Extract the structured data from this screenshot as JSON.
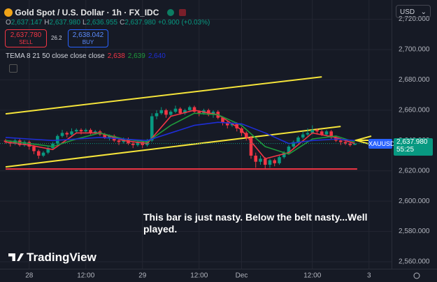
{
  "chart_data": {
    "type": "candlestick",
    "title": "Gold Spot / U.S. Dollar · 1h · FX_IDC",
    "ohlc_legend": [
      {
        "key": "O",
        "value": "2,637.147"
      },
      {
        "key": "H",
        "value": "2,637.980"
      },
      {
        "key": "L",
        "value": "2,636.955"
      },
      {
        "key": "C",
        "value": "2,637.980"
      }
    ],
    "change": "+0.900 (+0.03%)",
    "sell": {
      "price": "2,637.780",
      "label": "SELL"
    },
    "spread": "26.2",
    "buy": {
      "price": "2,638.042",
      "label": "BUY"
    },
    "indicator": {
      "name": "TEMA 8 21 50 close close close",
      "values": [
        "2,638",
        "2,639",
        "2,640"
      ]
    },
    "currency": "USD",
    "symbol_label": "XAUUSD",
    "last_price": "2,637.980",
    "countdown": "55:25",
    "annotation": "This bar is just nasty. Below the belt nasty...Well played.",
    "brand": "TradingView",
    "up_color": "#089981",
    "down_color": "#f23645",
    "categories": [
      null,
      null,
      null,
      null,
      null,
      "28",
      null,
      null,
      null,
      null,
      null,
      null,
      null,
      null,
      null,
      null,
      null,
      "12:00",
      null,
      null,
      null,
      null,
      null,
      null,
      null,
      null,
      null,
      null,
      null,
      "29",
      null,
      null,
      null,
      null,
      null,
      null,
      null,
      null,
      null,
      null,
      null,
      "12:00",
      null,
      null,
      null,
      null,
      null,
      null,
      null,
      null,
      "Dec",
      null,
      null,
      null,
      null,
      null,
      null,
      null,
      null,
      null,
      null,
      null,
      null,
      null,
      null,
      "12:00",
      null,
      null,
      null,
      null,
      null,
      null,
      null,
      null,
      null,
      null,
      null,
      "3"
    ],
    "open": [
      2640,
      2639,
      2638,
      2640,
      2637,
      2639,
      2636,
      2633,
      2630,
      2632,
      2635,
      2638,
      2643,
      2645,
      2644,
      2646,
      2647,
      2646,
      2647,
      2645,
      2646,
      2644,
      2642,
      2643,
      2640,
      2639,
      2641,
      2638,
      2637,
      2639,
      2637,
      2640,
      2656,
      2658,
      2660,
      2657,
      2659,
      2661,
      2658,
      2660,
      2662,
      2659,
      2658,
      2660,
      2657,
      2659,
      2655,
      2652,
      2650,
      2651,
      2648,
      2645,
      2642,
      2630,
      2626,
      2628,
      2624,
      2627,
      2625,
      2629,
      2632,
      2636,
      2639,
      2642,
      2644,
      2645,
      2647,
      2646,
      2644,
      2646,
      2642,
      2640,
      2639,
      2638,
      2637.147,
      null,
      null,
      null
    ],
    "high": [
      2641,
      2640,
      2641,
      2641,
      2640,
      2640,
      2637,
      2634,
      2633,
      2636,
      2639,
      2644,
      2647,
      2646,
      2648,
      2648,
      2648,
      2648,
      2648,
      2647,
      2647,
      2645,
      2644,
      2644,
      2641,
      2642,
      2642,
      2639,
      2640,
      2640,
      2641,
      2658,
      2660,
      2662,
      2661,
      2660,
      2663,
      2662,
      2661,
      2663,
      2663,
      2660,
      2661,
      2661,
      2660,
      2660,
      2656,
      2653,
      2652,
      2652,
      2649,
      2646,
      2643,
      2632,
      2630,
      2629,
      2628,
      2628,
      2630,
      2633,
      2637,
      2640,
      2643,
      2646,
      2648,
      2650,
      2648,
      2647,
      2647,
      2647,
      2643,
      2641,
      2640,
      2639,
      2637.98,
      null,
      null,
      null
    ],
    "low": [
      2638,
      2636,
      2637,
      2636,
      2636,
      2634,
      2631,
      2628,
      2629,
      2631,
      2634,
      2637,
      2642,
      2642,
      2643,
      2645,
      2644,
      2645,
      2644,
      2644,
      2643,
      2641,
      2640,
      2639,
      2637,
      2638,
      2637,
      2635,
      2636,
      2635,
      2636,
      2639,
      2654,
      2657,
      2655,
      2656,
      2658,
      2657,
      2657,
      2659,
      2658,
      2656,
      2657,
      2656,
      2655,
      2654,
      2650,
      2648,
      2649,
      2646,
      2643,
      2640,
      2628,
      2622,
      2624,
      2621,
      2622,
      2623,
      2624,
      2628,
      2631,
      2635,
      2638,
      2641,
      2643,
      2644,
      2644,
      2643,
      2643,
      2641,
      2639,
      2637,
      2637,
      2636,
      2636.955,
      null,
      null,
      null
    ],
    "close": [
      2639,
      2638,
      2640,
      2637,
      2639,
      2636,
      2633,
      2630,
      2632,
      2635,
      2638,
      2643,
      2645,
      2644,
      2646,
      2647,
      2646,
      2647,
      2645,
      2646,
      2644,
      2642,
      2643,
      2640,
      2639,
      2641,
      2638,
      2637,
      2639,
      2637,
      2640,
      2656,
      2658,
      2660,
      2657,
      2659,
      2661,
      2658,
      2660,
      2662,
      2659,
      2658,
      2660,
      2657,
      2659,
      2655,
      2652,
      2650,
      2651,
      2648,
      2645,
      2642,
      2630,
      2626,
      2628,
      2624,
      2627,
      2625,
      2629,
      2632,
      2636,
      2639,
      2642,
      2644,
      2645,
      2647,
      2646,
      2644,
      2646,
      2642,
      2640,
      2639,
      2638,
      2637,
      2637.98,
      null,
      null,
      null
    ],
    "overlay_x": [
      0,
      5,
      10,
      15,
      20,
      25,
      30,
      35,
      40,
      45,
      50,
      55,
      60,
      65,
      70,
      74
    ],
    "overlays": [
      {
        "color": "#f23645",
        "values": [
          2639,
          2637,
          2634,
          2645,
          2645,
          2640,
          2638,
          2656,
          2660,
          2657,
          2647,
          2628,
          2632,
          2645,
          2642,
          2638
        ]
      },
      {
        "color": "#1e9a3c",
        "values": [
          2640,
          2638,
          2636,
          2641,
          2645,
          2641,
          2639,
          2650,
          2658,
          2657,
          2650,
          2636,
          2631,
          2641,
          2643,
          2639
        ]
      },
      {
        "color": "#1e2ed6",
        "values": [
          2642,
          2641,
          2640,
          2641,
          2642,
          2641,
          2640,
          2645,
          2650,
          2652,
          2651,
          2645,
          2638,
          2640,
          2641,
          2640
        ]
      }
    ],
    "drawings": [
      {
        "color": "#f5e43a",
        "x": [
          0,
          67
        ],
        "y": [
          2657.6,
          2682
        ]
      },
      {
        "color": "#f5e43a",
        "x": [
          0,
          71
        ],
        "y": [
          2622.6,
          2649.3
        ]
      },
      {
        "color": "#f23645",
        "x": [
          0,
          74.5
        ],
        "y": [
          2621.2,
          2621.2
        ]
      }
    ],
    "ylim": [
      2555.4,
      2732.7
    ],
    "yticks": [
      {
        "value": 2560,
        "label": "2,560.000"
      },
      {
        "value": 2580,
        "label": "2,580.000"
      },
      {
        "value": 2600,
        "label": "2,600.000"
      },
      {
        "value": 2620,
        "label": "2,620.000"
      },
      {
        "value": 2640,
        "label": "2,640.000"
      },
      {
        "value": 2660,
        "label": "2,660.000"
      },
      {
        "value": 2680,
        "label": "2,680.000"
      },
      {
        "value": 2700,
        "label": "2,700.000"
      },
      {
        "value": 2720,
        "label": "2,720.000"
      }
    ],
    "grid": true
  }
}
